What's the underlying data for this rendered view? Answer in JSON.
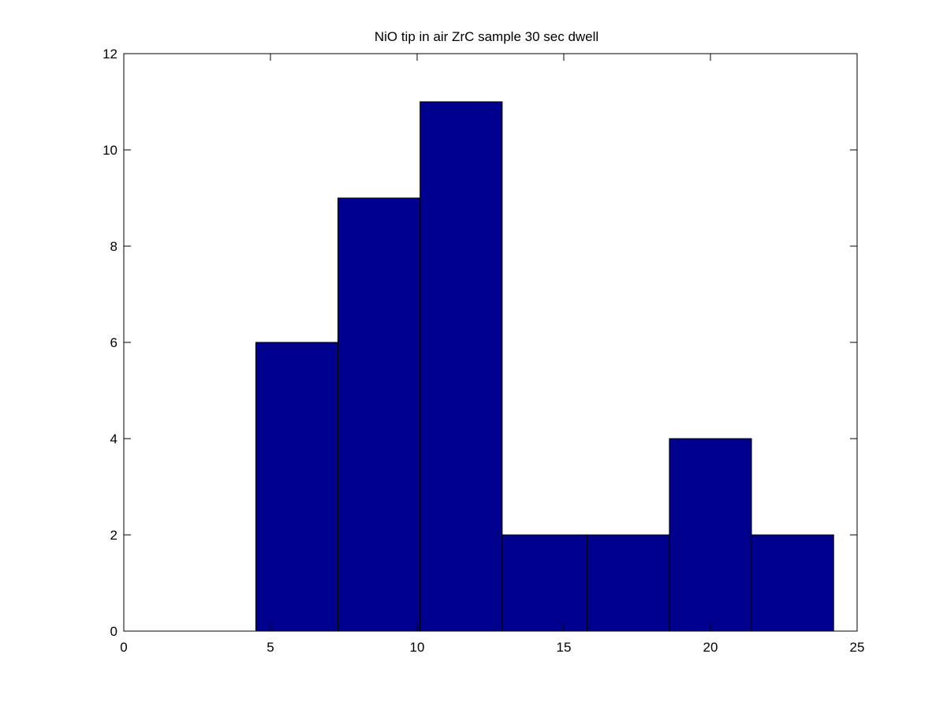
{
  "chart_data": {
    "type": "bar",
    "title": "NiO tip in air ZrC sample 30 sec dwell",
    "xlabel": "",
    "ylabel": "",
    "bin_edges": [
      4.5,
      7.3,
      10.1,
      12.9,
      15.8,
      18.6,
      21.4,
      24.2
    ],
    "values": [
      6,
      9,
      11,
      2,
      2,
      4,
      2
    ],
    "xlim": [
      0,
      25
    ],
    "ylim": [
      0,
      12
    ],
    "x_ticks": [
      0,
      5,
      10,
      15,
      20,
      25
    ],
    "y_ticks": [
      0,
      2,
      4,
      6,
      8,
      10,
      12
    ],
    "bar_color": "#00008f",
    "edge_color": "#000000",
    "grid": false,
    "legend": "none"
  }
}
